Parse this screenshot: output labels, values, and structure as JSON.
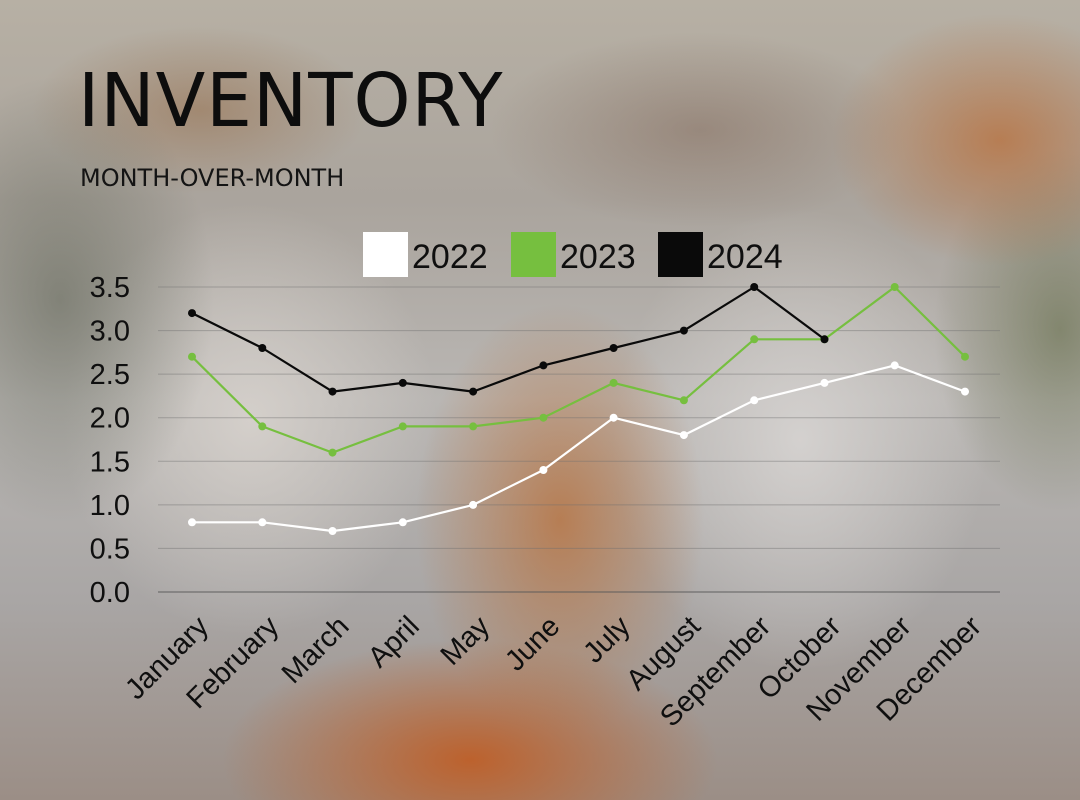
{
  "title": "INVENTORY",
  "subtitle": "MONTH-OVER-MONTH",
  "chart_data": {
    "type": "line",
    "title": "INVENTORY",
    "subtitle": "MONTH-OVER-MONTH",
    "xlabel": "",
    "ylabel": "",
    "ylim": [
      0,
      3.5
    ],
    "yticks": [
      "0.0",
      "0.5",
      "1.0",
      "1.5",
      "2.0",
      "2.5",
      "3.0",
      "3.5"
    ],
    "grid": true,
    "legend_position": "top",
    "categories": [
      "January",
      "February",
      "March",
      "April",
      "May",
      "June",
      "July",
      "August",
      "September",
      "October",
      "November",
      "December"
    ],
    "series": [
      {
        "name": "2022",
        "color": "#ffffff",
        "values": [
          0.8,
          0.8,
          0.7,
          0.8,
          1.0,
          1.4,
          2.0,
          1.8,
          2.2,
          2.4,
          2.6,
          2.3
        ]
      },
      {
        "name": "2023",
        "color": "#76bf3f",
        "values": [
          2.7,
          1.9,
          1.6,
          1.9,
          1.9,
          2.0,
          2.4,
          2.2,
          2.9,
          2.9,
          3.5,
          2.7
        ]
      },
      {
        "name": "2024",
        "color": "#0a0a0a",
        "values": [
          3.2,
          2.8,
          2.3,
          2.4,
          2.3,
          2.6,
          2.8,
          3.0,
          3.5,
          2.9,
          null,
          null
        ]
      }
    ]
  }
}
